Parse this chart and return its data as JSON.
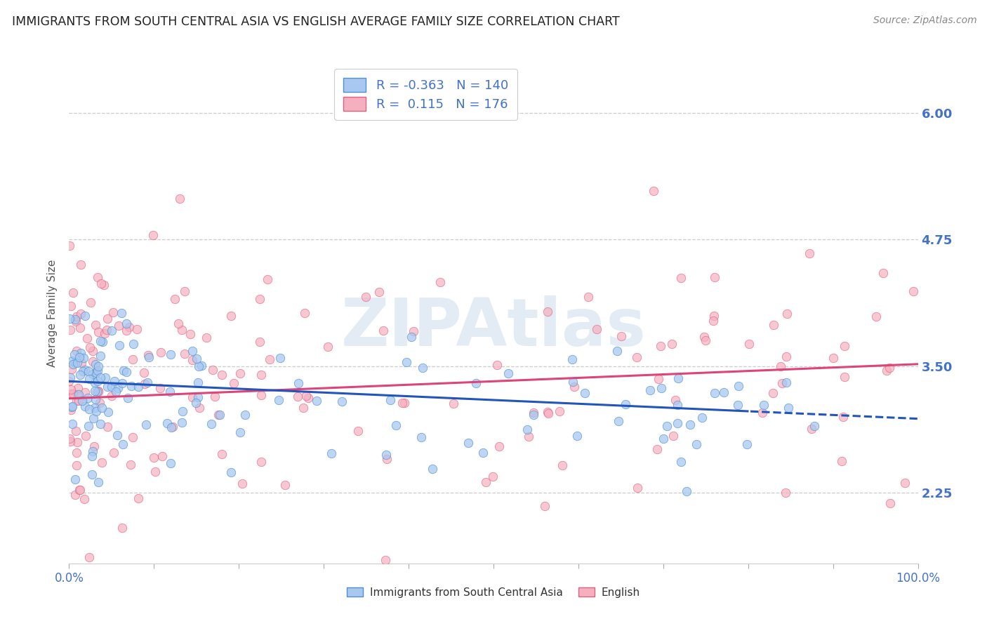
{
  "title": "IMMIGRANTS FROM SOUTH CENTRAL ASIA VS ENGLISH AVERAGE FAMILY SIZE CORRELATION CHART",
  "source": "Source: ZipAtlas.com",
  "ylabel": "Average Family Size",
  "blue_label": "Immigrants from South Central Asia",
  "pink_label": "English",
  "blue_R": -0.363,
  "blue_N": 140,
  "pink_R": 0.115,
  "pink_N": 176,
  "yticks": [
    2.25,
    3.5,
    4.75,
    6.0
  ],
  "xlim": [
    0.0,
    100.0
  ],
  "ylim": [
    1.55,
    6.5
  ],
  "blue_scatter_color": "#a8c8f0",
  "blue_edge_color": "#5090d0",
  "pink_scatter_color": "#f5b0c0",
  "pink_edge_color": "#e06080",
  "blue_line_color": "#2255bb",
  "pink_line_color": "#dd4477",
  "title_color": "#222222",
  "axis_label_color": "#555555",
  "tick_color": "#4472c4",
  "grid_color": "#cccccc",
  "background_color": "#ffffff",
  "legend_text_color": "#4472c4",
  "watermark_text": "ZIPAtlas",
  "watermark_color": "#ccddee",
  "blue_trend_y0": 3.35,
  "blue_trend_y1": 2.98,
  "pink_trend_y0": 3.18,
  "pink_trend_y1": 3.52
}
